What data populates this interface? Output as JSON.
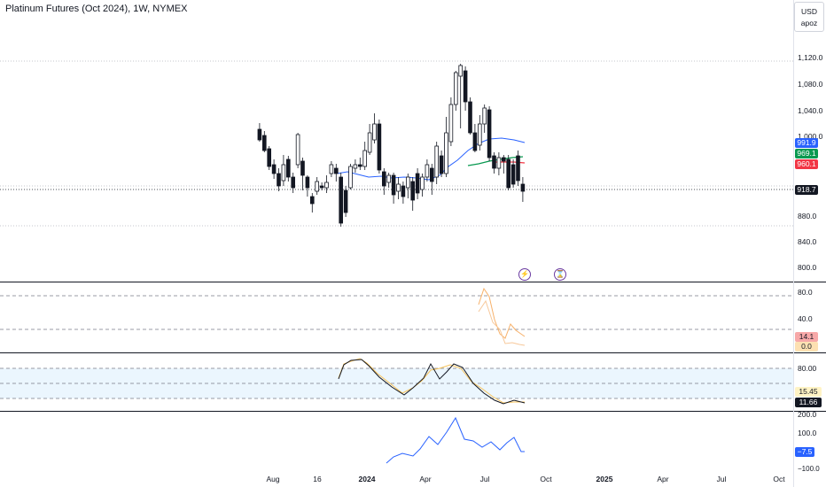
{
  "header": {
    "title": "Platinum Futures (Oct 2024), 1W, NYMEX"
  },
  "currency": {
    "code": "USD",
    "sub": "apoz"
  },
  "price_axis": {
    "ticks": [
      "1,120.0",
      "1,080.0",
      "1,040.0",
      "1,000.0",
      "880.0",
      "840.0",
      "800.0"
    ]
  },
  "badges": {
    "last": {
      "text": "918.7",
      "color": "#131722"
    },
    "ma_blue": {
      "text": "991.9",
      "color": "#2962ff"
    },
    "ma_green": {
      "text": "969.1",
      "color": "#089950"
    },
    "ma_red": {
      "text": "960.1",
      "color": "#f23645"
    }
  },
  "events": {
    "first": "⚡",
    "second": "⌛"
  },
  "ind1": {
    "ticks": [
      "80.0",
      "40.0"
    ],
    "badges": [
      {
        "text": "14.1",
        "color": "#f7a8a8"
      },
      {
        "text": "0.0",
        "color": "#fde0b2"
      }
    ]
  },
  "ind2": {
    "ticks": [
      "80.00",
      "15.45"
    ],
    "last": "11.66"
  },
  "ind3": {
    "ticks": [
      "200.0",
      "100.0",
      "−100.0"
    ],
    "last": "−7.5"
  },
  "time_axis": {
    "labels": [
      {
        "text": "Aug",
        "bold": false
      },
      {
        "text": "16",
        "bold": false
      },
      {
        "text": "2024",
        "bold": true
      },
      {
        "text": "Apr",
        "bold": false
      },
      {
        "text": "Jul",
        "bold": false
      },
      {
        "text": "Oct",
        "bold": false
      },
      {
        "text": "2025",
        "bold": true
      },
      {
        "text": "Apr",
        "bold": false
      },
      {
        "text": "Jul",
        "bold": false
      },
      {
        "text": "Oct",
        "bold": false
      }
    ]
  },
  "colors": {
    "up": "#ffffff",
    "down": "#131722",
    "orange": "#f7b16a",
    "blue": "#2962ff"
  }
}
